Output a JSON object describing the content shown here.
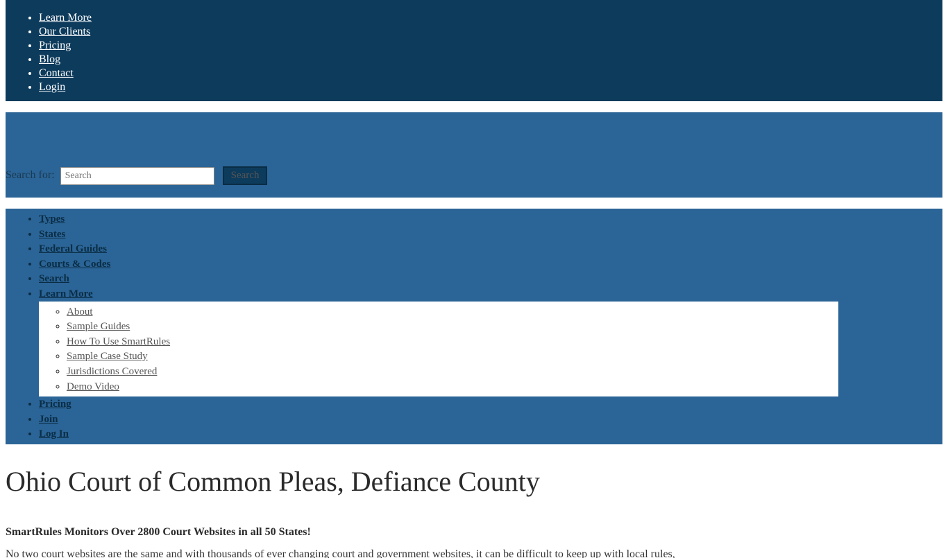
{
  "colors": {
    "darkBlue": "#0d3b5c",
    "mediumBlue": "#2b6496",
    "white": "#ffffff",
    "textDark": "#2a2a2a",
    "linkGray": "#555555"
  },
  "topNav": {
    "items": [
      {
        "label": "Learn More"
      },
      {
        "label": "Our Clients"
      },
      {
        "label": "Pricing"
      },
      {
        "label": "Blog"
      },
      {
        "label": "Contact"
      },
      {
        "label": "Login"
      }
    ]
  },
  "search": {
    "label": "Search for:",
    "placeholder": "Search",
    "button": "Search"
  },
  "mainNav": {
    "items": [
      {
        "label": "Types"
      },
      {
        "label": "States"
      },
      {
        "label": "Federal Guides"
      },
      {
        "label": "Courts & Codes"
      },
      {
        "label": "Search"
      },
      {
        "label": "Learn More",
        "submenu": [
          {
            "label": "About"
          },
          {
            "label": "Sample Guides"
          },
          {
            "label": "How To Use SmartRules"
          },
          {
            "label": "Sample Case Study"
          },
          {
            "label": "Jurisdictions Covered"
          },
          {
            "label": "Demo Video"
          }
        ]
      },
      {
        "label": "Pricing"
      },
      {
        "label": "Join"
      },
      {
        "label": "Log In"
      }
    ]
  },
  "content": {
    "title": "Ohio Court of Common Pleas, Defiance County",
    "subhead": "SmartRules Monitors Over 2800 Court Websites in all 50 States!",
    "body": "No two court websites are the same and with thousands of ever changing court and government websites, it can be difficult to keep up with local rules,"
  }
}
